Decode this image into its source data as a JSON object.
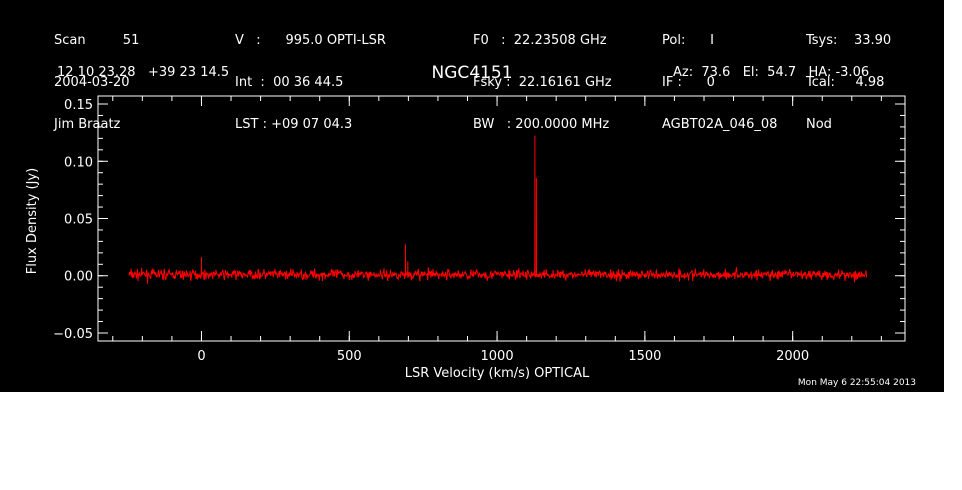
{
  "header": {
    "col1": [
      "Scan         51",
      "2004-03-20",
      "Jim Braatz"
    ],
    "col2": [
      "V   :      995.0 OPTI-LSR",
      "Int  :  00 36 44.5",
      "LST : +09 07 04.3"
    ],
    "col3": [
      "F0   :  22.23508 GHz",
      "Fsky :  22.16161 GHz",
      "BW   : 200.0000 MHz"
    ],
    "col4": [
      "Pol:      I",
      "IF :      0",
      "AGBT02A_046_08"
    ],
    "col5": [
      "Tsys:    33.90",
      "Tcal:     4.98",
      "Nod"
    ],
    "coords": "12 10 23.28   +39 23 14.5",
    "source": "NGC4151",
    "pointing": "Az:  73.6   El:  54.7   HA: -3.06"
  },
  "footer": "Mon May  6 22:55:04 2013",
  "colors": {
    "background": "#000000",
    "axes": "#ffffff",
    "trace": "#ff0000"
  },
  "chart_data": {
    "type": "line",
    "title": "NGC4151",
    "xlabel": "LSR Velocity (km/s) OPTICAL",
    "ylabel": "Flux Density (Jy)",
    "xlim": [
      -350,
      2380
    ],
    "ylim": [
      -0.057,
      0.157
    ],
    "xticks": [
      0,
      500,
      1000,
      1500,
      2000
    ],
    "xtick_labels": [
      "0",
      "500",
      "1000",
      "1500",
      "2000"
    ],
    "yticks": [
      -0.05,
      0.0,
      0.05,
      0.1,
      0.15
    ],
    "ytick_labels": [
      "−0.05",
      "0.00",
      "0.05",
      "0.10",
      "0.15"
    ],
    "series": [
      {
        "noise_sigma": 0.0022,
        "x_range": [
          -245,
          2250
        ],
        "baseline": 0.001,
        "points": [
          {
            "x": 0,
            "y": 0.016
          },
          {
            "x": 690,
            "y": 0.027
          },
          {
            "x": 698,
            "y": 0.012
          },
          {
            "x": 1128,
            "y": 0.122
          },
          {
            "x": 1133,
            "y": 0.085
          }
        ]
      }
    ]
  }
}
